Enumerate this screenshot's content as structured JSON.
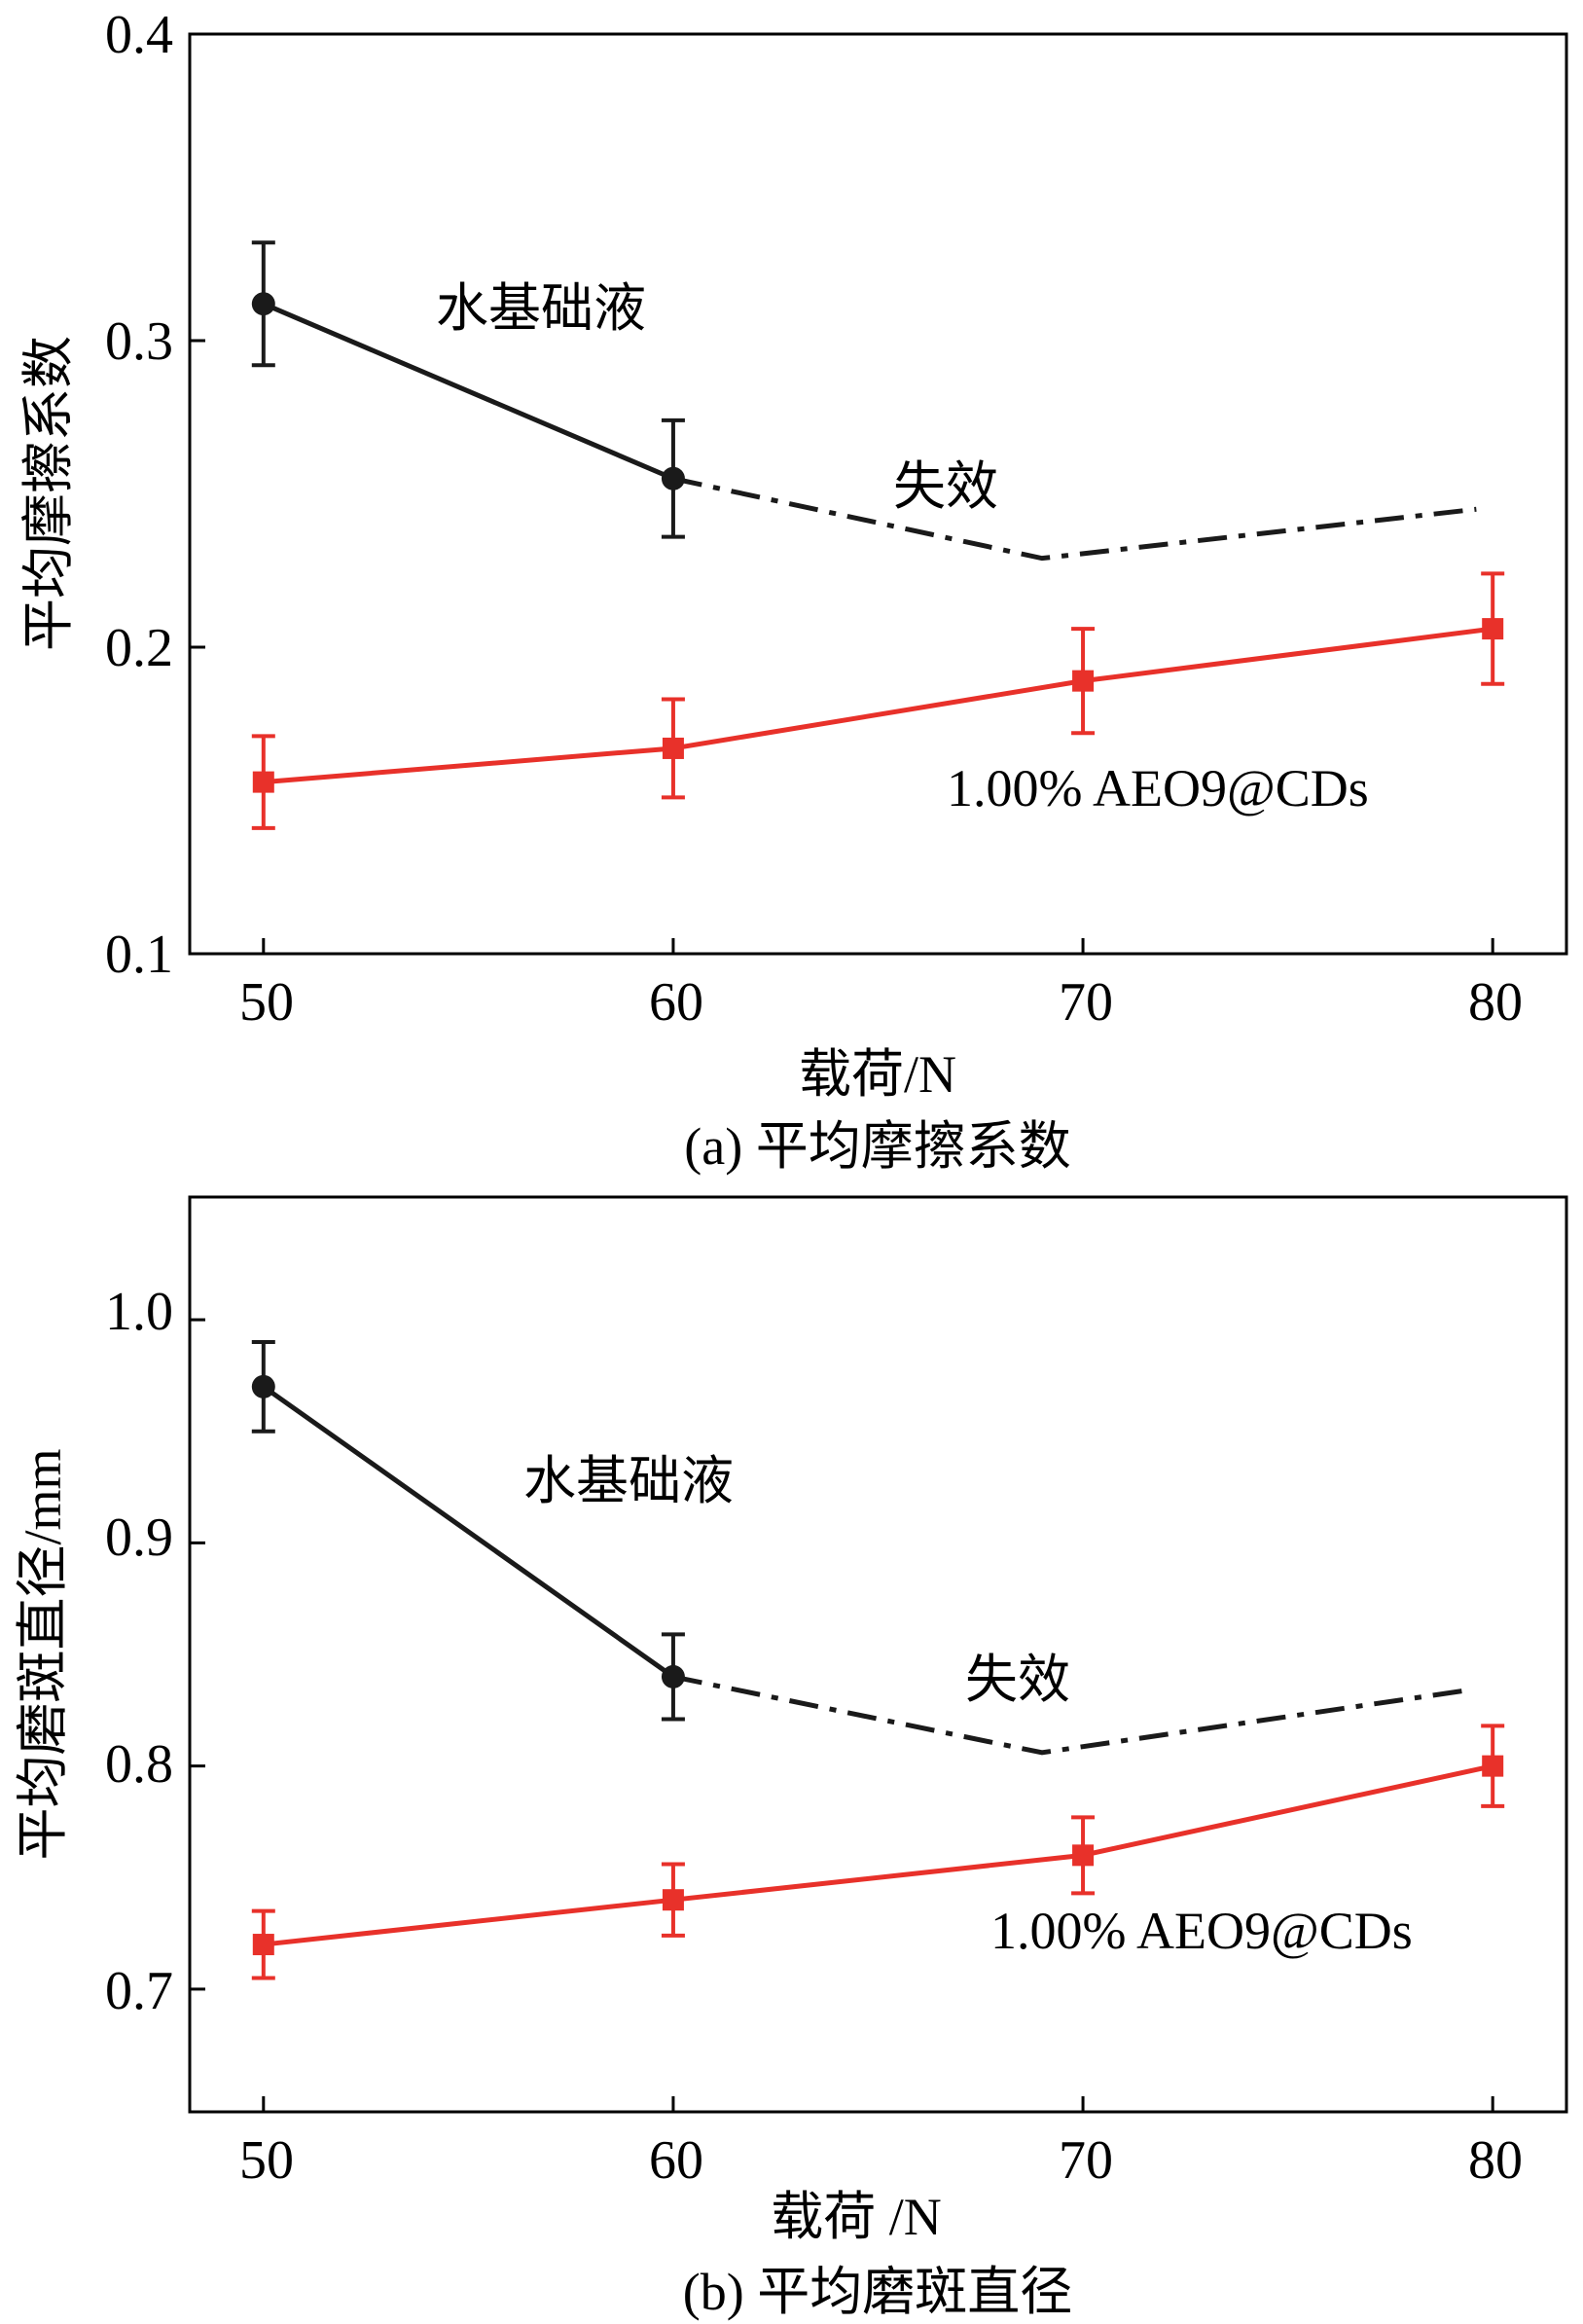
{
  "chart_data": [
    {
      "type": "line",
      "panel": "a",
      "caption": "(a) 平均摩擦系数",
      "xlabel": "载荷/N",
      "ylabel": "平均摩擦系数",
      "xlim": [
        48.2,
        81.8
      ],
      "ylim": [
        0.1,
        0.4
      ],
      "xticks": [
        "50",
        "60",
        "70",
        "80"
      ],
      "yticks": [
        "0.1",
        "0.2",
        "0.3",
        "0.4"
      ],
      "series": [
        {
          "name": "水基础液",
          "color": "#1a1a1a",
          "marker": "circle",
          "x": [
            50,
            60
          ],
          "y": [
            0.312,
            0.255
          ],
          "err": [
            0.02,
            0.019
          ],
          "failure_label": "失效",
          "failure_x": [
            60,
            69,
            79.6
          ],
          "failure_y": [
            0.255,
            0.229,
            0.245
          ]
        },
        {
          "name": "1.00%  AEO9@CDs",
          "color": "#e8312a",
          "marker": "square",
          "x": [
            50,
            60,
            70,
            80
          ],
          "y": [
            0.156,
            0.167,
            0.189,
            0.206
          ],
          "err": [
            0.015,
            0.016,
            0.017,
            0.018
          ]
        }
      ]
    },
    {
      "type": "line",
      "panel": "b",
      "caption": "(b) 平均磨斑直径",
      "xlabel": "载荷 /N",
      "ylabel": "平均磨斑直径/mm",
      "xlim": [
        48.2,
        81.8
      ],
      "ylim": [
        0.645,
        1.055
      ],
      "xticks": [
        "50",
        "60",
        "70",
        "80"
      ],
      "yticks": [
        "0.7",
        "0.8",
        "0.9",
        "1.0"
      ],
      "series": [
        {
          "name": "水基础液",
          "color": "#1a1a1a",
          "marker": "circle",
          "x": [
            50,
            60
          ],
          "y": [
            0.97,
            0.84
          ],
          "err": [
            0.02,
            0.019
          ],
          "failure_label": "失效",
          "failure_x": [
            60,
            69,
            79.4
          ],
          "failure_y": [
            0.84,
            0.806,
            0.834
          ]
        },
        {
          "name": "1.00% AEO9@CDs",
          "color": "#e8312a",
          "marker": "square",
          "x": [
            50,
            60,
            70,
            80
          ],
          "y": [
            0.72,
            0.74,
            0.76,
            0.8
          ],
          "err": [
            0.015,
            0.016,
            0.017,
            0.018
          ]
        }
      ]
    }
  ]
}
